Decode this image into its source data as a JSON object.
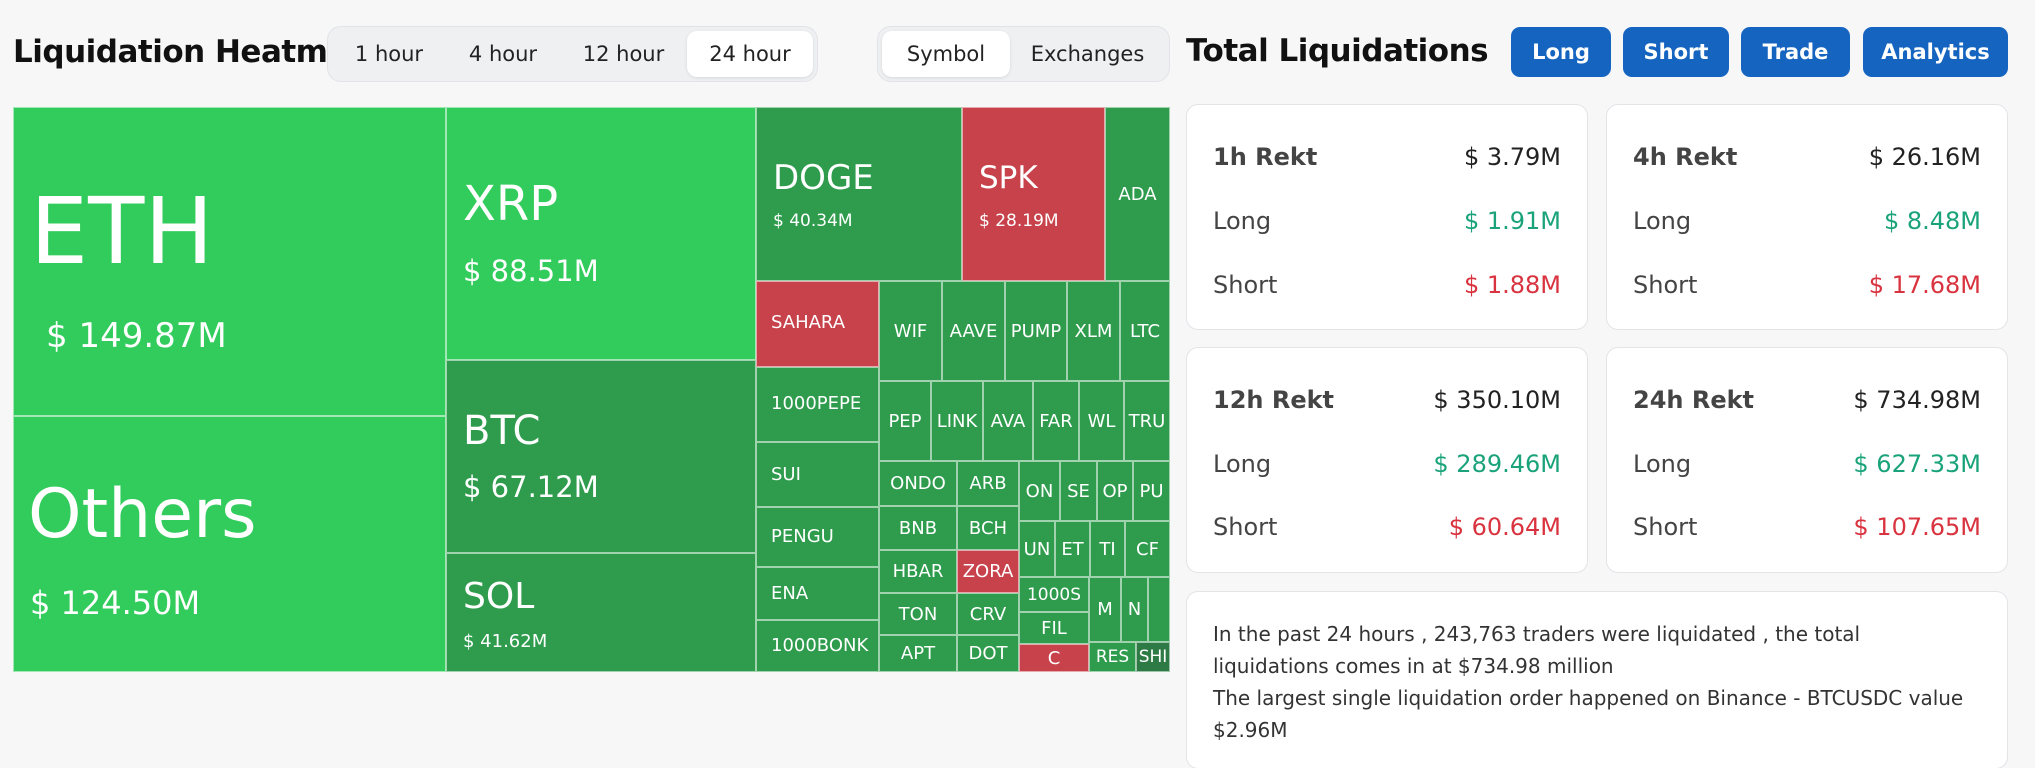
{
  "heatmap": {
    "title": "Liquidation Heatmap",
    "time_options": [
      "1 hour",
      "4 hour",
      "12 hour",
      "24 hour"
    ],
    "selected_time": "24 hour",
    "view_options": [
      "Symbol",
      "Exchanges"
    ],
    "selected_view": "Symbol"
  },
  "header": {
    "title": "Total Liquidations",
    "buttons": [
      "Long",
      "Short",
      "Trade",
      "Analytics"
    ]
  },
  "tiles": {
    "eth": {
      "symbol": "ETH",
      "value": "$ 149.87M"
    },
    "others": {
      "symbol": "Others",
      "value": "$ 124.50M"
    },
    "xrp": {
      "symbol": "XRP",
      "value": "$ 88.51M"
    },
    "btc": {
      "symbol": "BTC",
      "value": "$ 67.12M"
    },
    "sol": {
      "symbol": "SOL",
      "value": "$ 41.62M"
    },
    "doge": {
      "symbol": "DOGE",
      "value": "$ 40.34M"
    },
    "spk": {
      "symbol": "SPK",
      "value": "$ 28.19M"
    },
    "ada": {
      "symbol": "ADA"
    },
    "sahara": {
      "symbol": "SAHARA"
    },
    "pepe1000": {
      "symbol": "1000PEPE"
    },
    "sui": {
      "symbol": "SUI"
    },
    "pengu": {
      "symbol": "PENGU"
    },
    "ena": {
      "symbol": "ENA"
    },
    "bonk1000": {
      "symbol": "1000BONK"
    },
    "wif": {
      "symbol": "WIF"
    },
    "aave": {
      "symbol": "AAVE"
    },
    "pump": {
      "symbol": "PUMP"
    },
    "xlm": {
      "symbol": "XLM"
    },
    "ltc": {
      "symbol": "LTC"
    },
    "pep": {
      "symbol": "PEP"
    },
    "link": {
      "symbol": "LINK"
    },
    "ava": {
      "symbol": "AVA"
    },
    "far": {
      "symbol": "FAR"
    },
    "wl": {
      "symbol": "WL"
    },
    "tru": {
      "symbol": "TRU"
    },
    "ondo": {
      "symbol": "ONDO"
    },
    "arb": {
      "symbol": "ARB"
    },
    "on": {
      "symbol": "ON"
    },
    "se": {
      "symbol": "SE"
    },
    "op": {
      "symbol": "OP"
    },
    "pu": {
      "symbol": "PU"
    },
    "bnb": {
      "symbol": "BNB"
    },
    "bch": {
      "symbol": "BCH"
    },
    "un": {
      "symbol": "UN"
    },
    "et": {
      "symbol": "ET"
    },
    "ti": {
      "symbol": "TI"
    },
    "cf": {
      "symbol": "CF"
    },
    "hbar": {
      "symbol": "HBAR"
    },
    "zora": {
      "symbol": "ZORA"
    },
    "k1000s": {
      "symbol": "1000S"
    },
    "m": {
      "symbol": "M"
    },
    "n": {
      "symbol": "N"
    },
    "ton": {
      "symbol": "TON"
    },
    "crv": {
      "symbol": "CRV"
    },
    "fil": {
      "symbol": "FIL"
    },
    "apt": {
      "symbol": "APT"
    },
    "dot": {
      "symbol": "DOT"
    },
    "c": {
      "symbol": "C"
    },
    "res": {
      "symbol": "RES"
    },
    "shi": {
      "symbol": "SHI"
    }
  },
  "cards": [
    {
      "title": "1h Rekt",
      "total": "$ 3.79M",
      "long_label": "Long",
      "long": "$ 1.91M",
      "short_label": "Short",
      "short": "$ 1.88M"
    },
    {
      "title": "4h Rekt",
      "total": "$ 26.16M",
      "long_label": "Long",
      "long": "$ 8.48M",
      "short_label": "Short",
      "short": "$ 17.68M"
    },
    {
      "title": "12h Rekt",
      "total": "$ 350.10M",
      "long_label": "Long",
      "long": "$ 289.46M",
      "short_label": "Short",
      "short": "$ 60.64M"
    },
    {
      "title": "24h Rekt",
      "total": "$ 734.98M",
      "long_label": "Long",
      "long": "$ 627.33M",
      "short_label": "Short",
      "short": "$ 107.65M"
    }
  ],
  "summary": {
    "line1": "In the past 24 hours , 243,763 traders were liquidated , the total liquidations comes in at $734.98 million",
    "line2": "The largest single liquidation order happened on Binance - BTCUSDC value $2.96M"
  },
  "colors": {
    "green_bright": "#31cc5b",
    "green_dark": "#2e9c4c",
    "red_tile": "#c7424a",
    "button_blue": "#1565c0",
    "long_green": "#1aa37a",
    "short_red": "#d9333f"
  }
}
